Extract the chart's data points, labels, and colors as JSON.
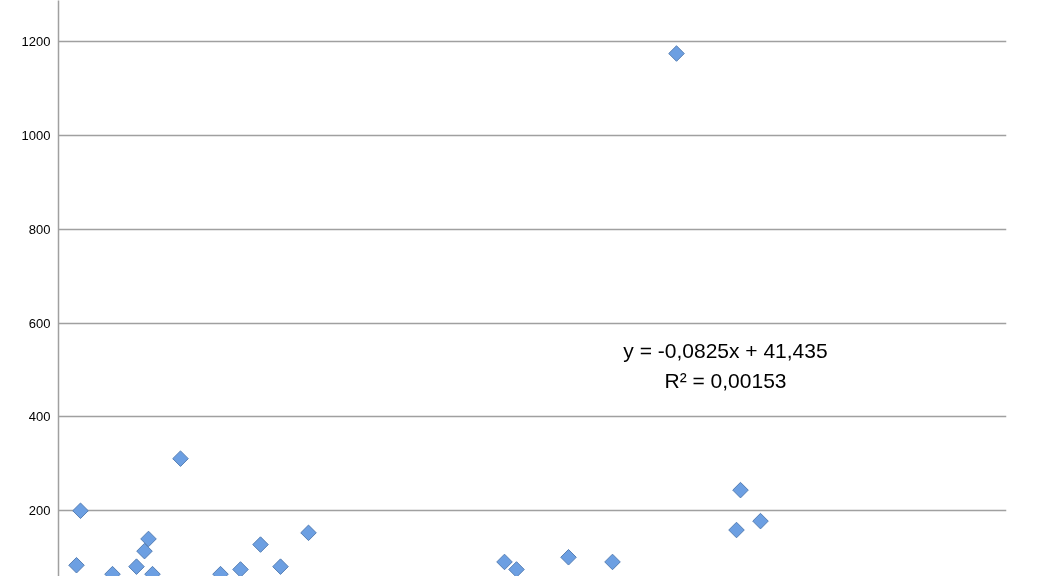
{
  "chart_data": {
    "type": "scatter",
    "categories": [
      null,
      null,
      null,
      null,
      null,
      null,
      null,
      null,
      null,
      null,
      null,
      null,
      null,
      null,
      null,
      null,
      null,
      null,
      null,
      null,
      null,
      null,
      null,
      null,
      null,
      null,
      null,
      null,
      null,
      null,
      null,
      null,
      null,
      null,
      null,
      null,
      null,
      null,
      null,
      null,
      null,
      null,
      null,
      null,
      null,
      null,
      null,
      null,
      null,
      null,
      null,
      null,
      null,
      null,
      null,
      null,
      null,
      null,
      null,
      null,
      null,
      null,
      null,
      null,
      null,
      null,
      null,
      null,
      null,
      null,
      null,
      null,
      null,
      null,
      null,
      null,
      null,
      null,
      null,
      null,
      null,
      null,
      null,
      null,
      null,
      null,
      null,
      null,
      null,
      null,
      null,
      null,
      null,
      null,
      null,
      null,
      null,
      null,
      null,
      null,
      null,
      null,
      null,
      null,
      null,
      null,
      null,
      null,
      null,
      null,
      null,
      null,
      null,
      null,
      null,
      null,
      null,
      null,
      null,
      null,
      null,
      null,
      null,
      null,
      null,
      null,
      null,
      null,
      null,
      null,
      null,
      null,
      null,
      null,
      null,
      null,
      null,
      null,
      null,
      null,
      null,
      null,
      null,
      null,
      null,
      null,
      null,
      null,
      null,
      null,
      null,
      null,
      null,
      null,
      null,
      null,
      null,
      null,
      null,
      null,
      null,
      null,
      null,
      null,
      null,
      null,
      null,
      null,
      null,
      null,
      null,
      null,
      null,
      null,
      null,
      null,
      null,
      null,
      null,
      null,
      null,
      null,
      null,
      null,
      null,
      null,
      null,
      null,
      null,
      null,
      null,
      null,
      null,
      null,
      null,
      null,
      null,
      null,
      null,
      null,
      null,
      null,
      null,
      null,
      null,
      null,
      null,
      null,
      null,
      null,
      null,
      null,
      null,
      null,
      null,
      null,
      null,
      null,
      null,
      null,
      null,
      null,
      null,
      null,
      null,
      null,
      null,
      null,
      null,
      null,
      null,
      null,
      null,
      null,
      null,
      null,
      null
    ],
    "values": [
      null,
      null,
      null,
      null,
      84,
      200,
      null,
      null,
      null,
      null,
      null,
      null,
      null,
      65,
      null,
      null,
      null,
      null,
      null,
      81,
      null,
      114,
      140,
      65,
      null,
      null,
      null,
      null,
      null,
      null,
      311,
      null,
      null,
      null,
      null,
      null,
      null,
      null,
      null,
      null,
      65,
      null,
      null,
      null,
      null,
      75,
      null,
      null,
      null,
      null,
      128,
      null,
      null,
      null,
      null,
      81,
      null,
      null,
      null,
      null,
      null,
      null,
      153,
      null,
      null,
      null,
      null,
      null,
      null,
      null,
      null,
      null,
      null,
      null,
      null,
      null,
      null,
      null,
      null,
      null,
      null,
      null,
      null,
      null,
      null,
      null,
      null,
      null,
      null,
      null,
      null,
      null,
      null,
      null,
      null,
      null,
      null,
      null,
      null,
      null,
      null,
      null,
      null,
      null,
      null,
      null,
      null,
      null,
      null,
      null,
      null,
      91,
      null,
      null,
      75,
      null,
      null,
      null,
      null,
      null,
      null,
      null,
      null,
      null,
      null,
      null,
      null,
      101,
      null,
      null,
      null,
      null,
      null,
      null,
      null,
      null,
      null,
      null,
      91,
      null,
      null,
      null,
      null,
      null,
      null,
      null,
      null,
      null,
      null,
      null,
      null,
      null,
      null,
      null,
      1174,
      null,
      null,
      null,
      null,
      null,
      null,
      null,
      null,
      null,
      null,
      null,
      null,
      null,
      null,
      159,
      244,
      null,
      null,
      null,
      null,
      178,
      null,
      null,
      null,
      null,
      null,
      null,
      null,
      null,
      null,
      null,
      null,
      null,
      null,
      null,
      null,
      null,
      null,
      null,
      null,
      null,
      null,
      null,
      null,
      null,
      null,
      null,
      null,
      null,
      null,
      null,
      null,
      null,
      null,
      null,
      null,
      null,
      null,
      null,
      null,
      null,
      null,
      null,
      null,
      null,
      null,
      null,
      null,
      null,
      null,
      null,
      null,
      null,
      null,
      null,
      null,
      null,
      null,
      null,
      null,
      null,
      null
    ],
    "color": "#6c9fe2",
    "marker": "diamond",
    "ylim": [
      60,
      1287
    ],
    "yticks": [
      200,
      400,
      600,
      800,
      1000,
      1200
    ],
    "grid": "y",
    "tick_labels": "y",
    "annotations": [
      "y = -0,0825x + 41,435",
      "R² = 0,00153"
    ]
  }
}
